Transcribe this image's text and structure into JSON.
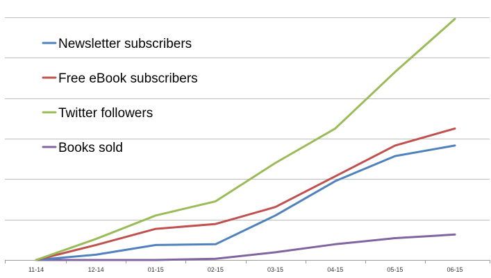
{
  "chart_data": {
    "type": "line",
    "title": "",
    "xlabel": "",
    "ylabel": "",
    "categories": [
      "11-14",
      "12-14",
      "01-15",
      "02-15",
      "03-15",
      "04-15",
      "05-15",
      "06-15"
    ],
    "ylim": [
      0,
      6
    ],
    "y_gridlines": 6,
    "y_tick_labels_shown": false,
    "grid": true,
    "legend_position": "top-left",
    "series": [
      {
        "name": "Newsletter subscribers",
        "color": "#4f81bd",
        "values": [
          0,
          0.13,
          0.37,
          0.39,
          1.1,
          1.95,
          2.57,
          2.83
        ]
      },
      {
        "name": "Free eBook subscribers",
        "color": "#c0504d",
        "values": [
          0,
          0.37,
          0.77,
          0.89,
          1.31,
          2.07,
          2.83,
          3.25
        ]
      },
      {
        "name": "Twitter followers",
        "color": "#9bbb59",
        "values": [
          0,
          0.52,
          1.1,
          1.45,
          2.4,
          3.25,
          4.65,
          5.96
        ]
      },
      {
        "name": "Books sold",
        "color": "#8064a2",
        "values": [
          0,
          0,
          0,
          0.03,
          0.19,
          0.39,
          0.54,
          0.63
        ]
      }
    ]
  }
}
